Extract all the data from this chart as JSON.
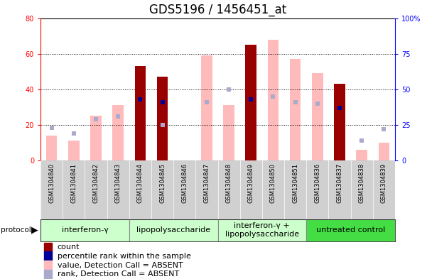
{
  "title": "GDS5196 / 1456451_at",
  "samples": [
    "GSM1304840",
    "GSM1304841",
    "GSM1304842",
    "GSM1304843",
    "GSM1304844",
    "GSM1304845",
    "GSM1304846",
    "GSM1304847",
    "GSM1304848",
    "GSM1304849",
    "GSM1304850",
    "GSM1304851",
    "GSM1304836",
    "GSM1304837",
    "GSM1304838",
    "GSM1304839"
  ],
  "count_values": [
    0,
    0,
    0,
    0,
    53,
    47,
    0,
    0,
    0,
    65,
    0,
    0,
    0,
    43,
    0,
    0
  ],
  "percentile_rank": [
    null,
    null,
    null,
    null,
    43,
    41,
    null,
    null,
    null,
    43,
    null,
    null,
    null,
    37,
    null,
    null
  ],
  "absent_value": [
    14,
    11,
    25,
    31,
    null,
    17,
    null,
    59,
    31,
    null,
    68,
    57,
    49,
    null,
    6,
    10
  ],
  "absent_rank": [
    23,
    19,
    29,
    31,
    null,
    25,
    null,
    41,
    50,
    null,
    45,
    41,
    40,
    null,
    14,
    22
  ],
  "protocols": [
    {
      "label": "interferon-γ",
      "start": 0,
      "end": 4,
      "color": "#ccffcc"
    },
    {
      "label": "lipopolysaccharide",
      "start": 4,
      "end": 8,
      "color": "#ccffcc"
    },
    {
      "label": "interferon-γ +\nlipopolysaccharide",
      "start": 8,
      "end": 12,
      "color": "#ccffcc"
    },
    {
      "label": "untreated control",
      "start": 12,
      "end": 16,
      "color": "#44dd44"
    }
  ],
  "ylim_left": [
    0,
    80
  ],
  "left_ticks": [
    0,
    20,
    40,
    60,
    80
  ],
  "right_ticks": [
    0,
    25,
    50,
    75,
    100
  ],
  "right_tick_labels": [
    "0",
    "25",
    "50",
    "75",
    "100%"
  ],
  "color_count": "#990000",
  "color_rank": "#000099",
  "color_absent_value": "#ffbbbb",
  "color_absent_rank": "#aaaacc",
  "bar_width": 0.5,
  "title_fontsize": 12,
  "axis_tick_fontsize": 7,
  "legend_fontsize": 8,
  "protocol_fontsize": 8,
  "sample_fontsize": 6
}
